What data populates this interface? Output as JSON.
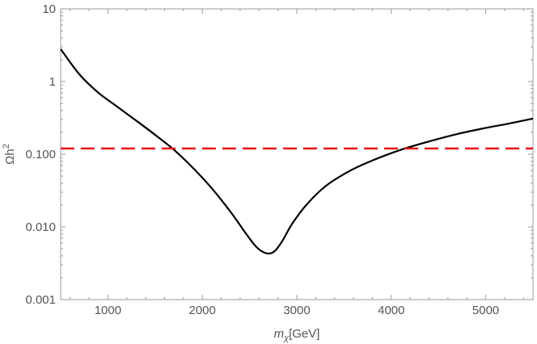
{
  "chart_data": {
    "type": "line",
    "title": "",
    "xlabel": "m",
    "xlabel_sub": "χ",
    "xlabel_unit": "[GeV]",
    "ylabel": "Ωh",
    "ylabel_sup": "2",
    "xlim": [
      500,
      5500
    ],
    "ylim": [
      0.001,
      10
    ],
    "yscale": "log",
    "grid": false,
    "x_ticks": [
      1000,
      2000,
      3000,
      4000,
      5000
    ],
    "x_tick_labels": [
      "1000",
      "2000",
      "3000",
      "4000",
      "5000"
    ],
    "y_ticks": [
      0.001,
      0.01,
      0.1,
      1,
      10
    ],
    "y_tick_labels": [
      "0.001",
      "0.010",
      "0.100",
      "1",
      "10"
    ],
    "series": [
      {
        "style": "solid",
        "color": "#000000",
        "x": [
          500,
          700,
          900,
          1100,
          1300,
          1500,
          1700,
          1900,
          2100,
          2300,
          2450,
          2550,
          2620,
          2700,
          2770,
          2850,
          2950,
          3100,
          3300,
          3550,
          3800,
          4100,
          4400,
          4700,
          5000,
          5250,
          5500
        ],
        "y": [
          2.8,
          1.25,
          0.7,
          0.45,
          0.29,
          0.185,
          0.115,
          0.065,
          0.034,
          0.016,
          0.0085,
          0.0057,
          0.0047,
          0.0043,
          0.0047,
          0.0065,
          0.011,
          0.02,
          0.036,
          0.058,
          0.082,
          0.115,
          0.15,
          0.19,
          0.23,
          0.265,
          0.31
        ]
      },
      {
        "style": "dashed",
        "color": "#e8161a",
        "x": [
          500,
          5500
        ],
        "y": [
          0.12,
          0.12
        ]
      }
    ]
  }
}
